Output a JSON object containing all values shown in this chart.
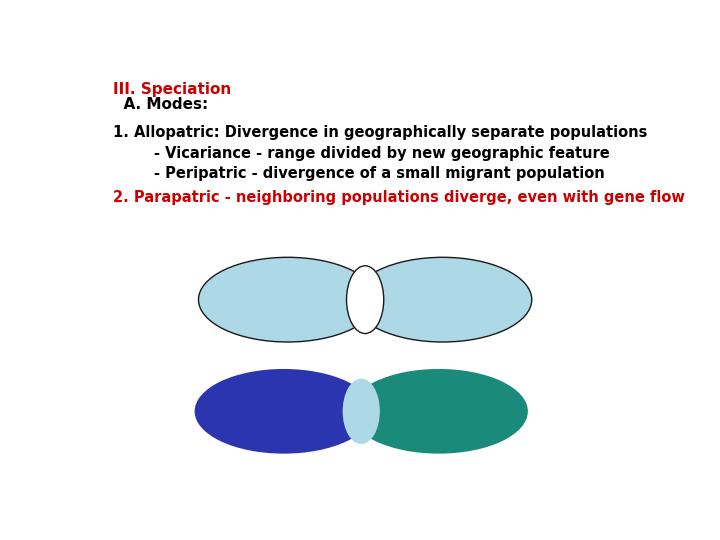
{
  "title1": "III. Speciation",
  "title2": "  A. Modes:",
  "line1": "1. Allopatric: Divergence in geographically separate populations",
  "line2": "        - Vicariance - range divided by new geographic feature",
  "line3": "        - Peripatric - divergence of a small migrant population",
  "line4": "2. Parapatric - neighboring populations diverge, even with gene flow",
  "red_color": "#CC0000",
  "black_color": "#000000",
  "bg_color": "#FFFFFF",
  "top_ellipse_color": "#ADD8E6",
  "top_ellipse_edge": "#1a1a1a",
  "top_overlap_color": "#FFFFFF",
  "bottom_left_color": "#2B35AF",
  "bottom_right_color": "#1A8A7A",
  "bottom_overlap_color": "#ADD8E6",
  "font_size_title": 11,
  "font_size_body": 10.5
}
